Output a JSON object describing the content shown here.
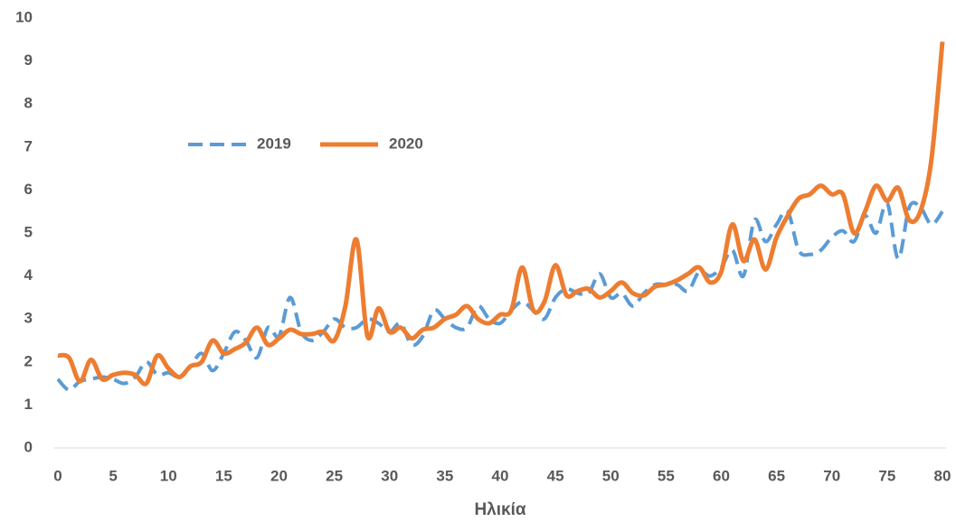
{
  "chart_data": {
    "type": "line",
    "x_label": "Ηλικία",
    "x": [
      0,
      1,
      2,
      3,
      4,
      5,
      6,
      7,
      8,
      9,
      10,
      11,
      12,
      13,
      14,
      15,
      16,
      17,
      18,
      19,
      20,
      21,
      22,
      23,
      24,
      25,
      26,
      27,
      28,
      29,
      30,
      31,
      32,
      33,
      34,
      35,
      36,
      37,
      38,
      39,
      40,
      41,
      42,
      43,
      44,
      45,
      46,
      47,
      48,
      49,
      50,
      51,
      52,
      53,
      54,
      55,
      56,
      57,
      58,
      59,
      60,
      61,
      62,
      63,
      64,
      65,
      66,
      67,
      68,
      69,
      70,
      71,
      72,
      73,
      74,
      75,
      76,
      77,
      78,
      79,
      80
    ],
    "series": [
      {
        "name": "2019",
        "color": "#5b9bd5",
        "dashed": true,
        "values": [
          1.6,
          1.35,
          1.55,
          1.6,
          1.65,
          1.6,
          1.5,
          1.65,
          2.0,
          1.7,
          1.75,
          1.65,
          1.9,
          2.2,
          1.8,
          2.2,
          2.7,
          2.5,
          2.1,
          2.8,
          2.6,
          3.5,
          2.7,
          2.5,
          2.7,
          3.0,
          2.8,
          2.8,
          3.0,
          2.9,
          2.7,
          2.9,
          2.4,
          2.6,
          3.2,
          3.0,
          2.8,
          2.8,
          3.3,
          3.0,
          2.9,
          3.2,
          3.4,
          3.2,
          3.0,
          3.5,
          3.7,
          3.6,
          3.6,
          4.05,
          3.5,
          3.6,
          3.3,
          3.6,
          3.8,
          3.8,
          3.8,
          3.65,
          4.1,
          4.0,
          4.2,
          4.6,
          4.0,
          5.3,
          4.8,
          5.2,
          5.5,
          4.6,
          4.5,
          4.6,
          4.9,
          5.05,
          4.8,
          5.4,
          5.0,
          5.7,
          4.4,
          5.6,
          5.6,
          5.2,
          5.5
        ]
      },
      {
        "name": "2020",
        "color": "#ed7d31",
        "dashed": false,
        "values": [
          2.15,
          2.1,
          1.55,
          2.05,
          1.6,
          1.7,
          1.75,
          1.7,
          1.5,
          2.15,
          1.85,
          1.65,
          1.9,
          2.0,
          2.5,
          2.2,
          2.3,
          2.45,
          2.8,
          2.4,
          2.55,
          2.75,
          2.65,
          2.65,
          2.7,
          2.5,
          3.3,
          4.85,
          2.6,
          3.25,
          2.7,
          2.8,
          2.55,
          2.75,
          2.8,
          3.0,
          3.1,
          3.3,
          3.0,
          2.9,
          3.1,
          3.2,
          4.2,
          3.2,
          3.4,
          4.25,
          3.55,
          3.65,
          3.7,
          3.5,
          3.65,
          3.85,
          3.6,
          3.55,
          3.75,
          3.8,
          3.9,
          4.05,
          4.2,
          3.85,
          4.1,
          5.2,
          4.35,
          4.85,
          4.15,
          4.9,
          5.4,
          5.8,
          5.9,
          6.1,
          5.9,
          5.9,
          5.0,
          5.5,
          6.1,
          5.75,
          6.05,
          5.3,
          5.5,
          6.7,
          9.45
        ]
      }
    ],
    "xlim": [
      0,
      80
    ],
    "xticks": [
      0,
      5,
      10,
      15,
      20,
      25,
      30,
      35,
      40,
      45,
      50,
      55,
      60,
      65,
      70,
      75,
      80
    ],
    "ylim": [
      0,
      10
    ],
    "yticks": [
      0,
      1,
      2,
      3,
      4,
      5,
      6,
      7,
      8,
      9,
      10
    ],
    "grid": false,
    "legend": "upper left"
  }
}
